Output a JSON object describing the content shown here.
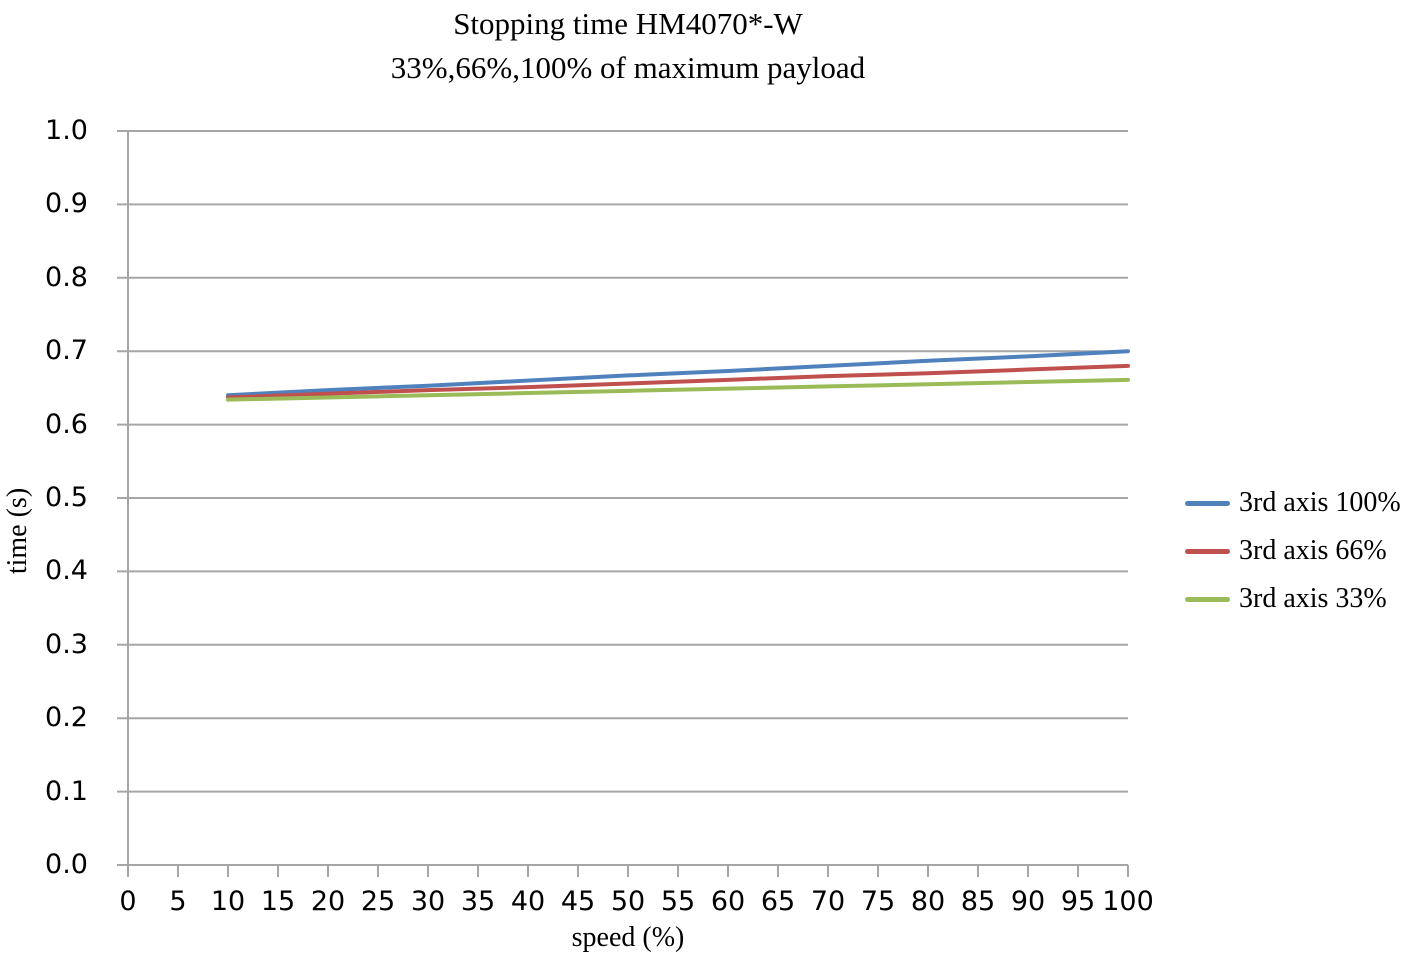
{
  "chart_data": {
    "type": "line",
    "title": "Stopping time HM4070*-W",
    "subtitle": "33%,66%,100% of maximum payload",
    "xlabel": "speed (%)",
    "ylabel": "time (s)",
    "xlim": [
      0,
      100
    ],
    "ylim": [
      0.0,
      1.0
    ],
    "x_ticks": [
      0,
      5,
      10,
      15,
      20,
      25,
      30,
      35,
      40,
      45,
      50,
      55,
      60,
      65,
      70,
      75,
      80,
      85,
      90,
      95,
      100
    ],
    "y_tick_labels": [
      "0.0",
      "0.1",
      "0.2",
      "0.3",
      "0.4",
      "0.5",
      "0.6",
      "0.7",
      "0.8",
      "0.9",
      "1.0"
    ],
    "grid": "horizontal-only",
    "legend_position": "right",
    "x": [
      10,
      20,
      30,
      40,
      50,
      60,
      70,
      80,
      90,
      100
    ],
    "series": [
      {
        "name": "3rd axis 100%",
        "color": "#4F81BD",
        "values": [
          0.64,
          0.647,
          0.653,
          0.66,
          0.667,
          0.673,
          0.68,
          0.687,
          0.693,
          0.7
        ]
      },
      {
        "name": "3rd axis 66%",
        "color": "#C0504D",
        "values": [
          0.637,
          0.642,
          0.647,
          0.651,
          0.656,
          0.661,
          0.666,
          0.67,
          0.675,
          0.68
        ]
      },
      {
        "name": "3rd axis 33%",
        "color": "#9BBB59",
        "values": [
          0.634,
          0.637,
          0.64,
          0.643,
          0.646,
          0.649,
          0.652,
          0.655,
          0.658,
          0.661
        ]
      }
    ],
    "colors": {
      "gridline": "#A6A6A6",
      "axis": "#A6A6A6",
      "text": "#000000"
    }
  }
}
